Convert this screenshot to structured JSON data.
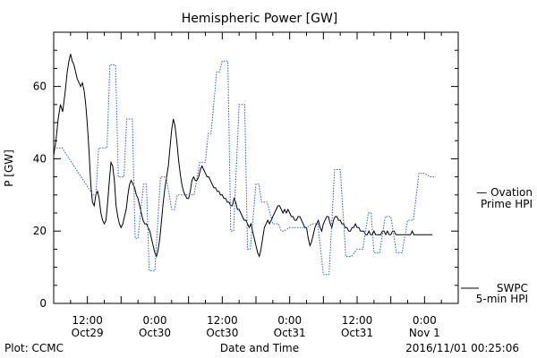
{
  "chart_data": {
    "type": "line",
    "title": "Hemispheric Power [GW]",
    "ylabel": "P [GW]",
    "xlabel": "Date and Time",
    "ylim": [
      0,
      75
    ],
    "xlim": [
      0,
      72
    ],
    "x_unit": "hours from 2016-10-28 06:00",
    "y_ticks": [
      0,
      20,
      40,
      60
    ],
    "x_ticks": [
      {
        "x": 6,
        "time": "12:00",
        "date": "Oct29"
      },
      {
        "x": 18,
        "time": "0:00",
        "date": "Oct30"
      },
      {
        "x": 30,
        "time": "12:00",
        "date": "Oct30"
      },
      {
        "x": 42,
        "time": "0:00",
        "date": "Oct31"
      },
      {
        "x": 54,
        "time": "12:00",
        "date": "Oct31"
      },
      {
        "x": 66,
        "time": "0:00",
        "date": "Nov 1"
      }
    ],
    "grid": false,
    "series": [
      {
        "name": "SWPC 5-min HPI",
        "color": "#000000",
        "style": "solid",
        "x": [
          0,
          0.4,
          0.8,
          1.2,
          1.6,
          2,
          2.4,
          2.7,
          3,
          3.3,
          3.6,
          3.9,
          4.2,
          4.5,
          4.8,
          5.1,
          5.4,
          5.7,
          6,
          6.3,
          6.6,
          6.9,
          7.2,
          7.5,
          7.8,
          8.1,
          8.4,
          8.7,
          9,
          9.3,
          9.6,
          9.9,
          10.2,
          10.5,
          10.8,
          11.1,
          11.4,
          11.7,
          12,
          12.3,
          12.6,
          12.9,
          13.2,
          13.5,
          13.8,
          14.1,
          14.4,
          14.7,
          15,
          15.3,
          15.6,
          15.9,
          16.2,
          16.5,
          16.8,
          17.1,
          17.4,
          17.7,
          18,
          18.3,
          18.6,
          18.9,
          19.2,
          19.5,
          19.8,
          20.1,
          20.4,
          20.7,
          21,
          21.3,
          21.6,
          21.9,
          22.2,
          22.5,
          22.8,
          23.1,
          23.4,
          23.7,
          24,
          24.3,
          24.6,
          24.9,
          25.2,
          25.5,
          25.8,
          26.1,
          26.4,
          26.7,
          27,
          27.3,
          27.6,
          27.9,
          28.2,
          28.5,
          28.8,
          29.1,
          29.4,
          29.7,
          30,
          30.3,
          30.6,
          30.9,
          31.2,
          31.5,
          31.8,
          32.1,
          32.4,
          32.7,
          33,
          33.3,
          33.6,
          33.9,
          34.2,
          34.5,
          34.8,
          35.1,
          35.4,
          35.7,
          36,
          36.3,
          36.6,
          36.9,
          37.2,
          37.5,
          37.8,
          38.1,
          38.4,
          38.7,
          39,
          39.3,
          39.6,
          39.9,
          40.2,
          40.5,
          40.8,
          41.1,
          41.4,
          41.7,
          42,
          42.3,
          42.6,
          42.9,
          43.2,
          43.5,
          43.8,
          44.1,
          44.4,
          44.7,
          45,
          45.3,
          45.6,
          45.9,
          46.2,
          46.5,
          46.8,
          47.1,
          47.4,
          47.7,
          48,
          48.3,
          48.6,
          48.9,
          49.2,
          49.5,
          49.8,
          50.1,
          50.4,
          50.7,
          51,
          51.3,
          51.6,
          51.9,
          52.2,
          52.5,
          52.8,
          53.1,
          53.4,
          53.7,
          54,
          54.3,
          54.6,
          54.9,
          55.2,
          55.5,
          55.8,
          56.1,
          56.4,
          56.7,
          57,
          57.3,
          57.6,
          57.9,
          58.2,
          58.5,
          58.8,
          59.1,
          59.4,
          59.7,
          60,
          60.3,
          60.6,
          60.9,
          61.2,
          61.4,
          61.7,
          62,
          62.3,
          62.6,
          62.9,
          63.2,
          63.5,
          63.8,
          64.1,
          64.4,
          64.7,
          65,
          65.3,
          65.6,
          65.9,
          66.2,
          66.5,
          66.8,
          67.1,
          67.4
        ],
        "y": [
          41,
          45,
          51,
          55,
          53,
          58,
          64,
          67,
          69,
          67,
          66,
          64,
          62,
          61,
          60,
          61,
          59,
          55,
          49,
          42,
          33,
          28,
          27,
          30,
          31,
          29,
          25,
          23,
          22,
          23,
          28,
          34,
          39,
          38,
          34,
          27,
          24,
          22,
          21,
          22,
          24,
          26,
          30,
          33,
          34,
          33,
          32,
          30,
          29,
          27,
          25,
          23,
          22,
          22,
          21,
          20,
          18,
          16,
          14,
          13,
          15,
          18,
          23,
          28,
          32,
          35,
          38,
          43,
          48,
          51,
          49,
          45,
          40,
          36,
          33,
          31,
          30,
          29,
          29,
          31,
          34,
          35,
          34,
          34,
          35,
          37,
          38,
          37,
          36,
          35,
          35,
          34,
          33,
          32,
          32,
          31,
          31,
          30,
          30,
          29,
          29,
          28,
          28,
          27,
          27,
          29,
          28,
          26,
          26,
          25,
          24,
          23,
          23,
          22,
          21,
          22,
          20,
          18,
          16,
          14,
          13,
          15,
          18,
          21,
          22,
          23,
          22,
          23,
          24,
          25,
          26,
          27,
          27,
          26,
          25,
          26,
          25,
          26,
          25,
          24,
          24,
          23,
          23,
          24,
          24,
          23,
          22,
          21,
          21,
          18,
          16,
          17,
          19,
          21,
          22,
          23,
          21,
          20,
          22,
          23,
          24,
          24,
          22,
          21,
          23,
          24,
          24,
          23,
          23,
          22,
          22,
          21,
          21,
          20,
          20,
          21,
          21,
          22,
          21,
          21,
          20,
          20,
          20,
          19,
          19,
          20,
          19,
          19,
          20,
          19,
          19,
          19,
          19,
          20,
          20,
          19,
          20,
          19,
          19,
          20,
          20,
          19,
          19,
          19,
          19,
          19,
          19,
          19,
          19,
          19,
          19,
          20,
          19,
          19,
          19,
          19,
          19,
          19,
          19,
          19,
          19,
          19,
          19,
          19
        ]
      },
      {
        "name": "Ovation Prime HPI",
        "color": "#1f5fbf",
        "style": "dotted",
        "x": [
          0,
          1.5,
          7,
          7.5,
          8,
          9.5,
          10,
          11,
          11.5,
          12.5,
          13,
          14,
          14.5,
          15,
          16,
          16.5,
          17,
          18,
          19,
          20,
          21,
          21.5,
          22,
          23,
          24,
          25,
          26,
          27,
          27.5,
          28,
          29,
          29.5,
          30,
          31,
          31.5,
          32,
          33,
          34,
          34.5,
          35,
          36,
          36.5,
          37,
          38,
          39,
          40,
          40.5,
          41,
          42,
          43,
          44,
          45,
          46,
          47,
          48,
          49,
          50,
          51,
          52,
          53,
          54,
          55,
          56,
          56.5,
          57,
          58,
          59,
          60,
          61,
          62,
          63,
          64,
          65,
          66,
          67,
          68
        ],
        "y": [
          43,
          43,
          30,
          30,
          43,
          43,
          66,
          66,
          35,
          35,
          51,
          51,
          18,
          18,
          33,
          33,
          9,
          9,
          35,
          35,
          26,
          26,
          30,
          30,
          30,
          30,
          39,
          39,
          47,
          47,
          64,
          64,
          67,
          67,
          20,
          20,
          55,
          55,
          15,
          15,
          33,
          33,
          28,
          28,
          22,
          22,
          20,
          20,
          21,
          21,
          21,
          21,
          22,
          22,
          8,
          8,
          37,
          37,
          13,
          13,
          15,
          15,
          25,
          25,
          14,
          14,
          24,
          24,
          14,
          14,
          23,
          23,
          36,
          36,
          35,
          35
        ]
      }
    ],
    "legend": [
      {
        "text": "— Ovation",
        "text2": "Prime HPI",
        "color": "#1f5fbf"
      },
      {
        "text": "SWPC",
        "text2": "5-min HPI",
        "color": "#000000"
      }
    ],
    "footer": {
      "left": "Plot: CCMC",
      "right": "2016/11/01 00:25:06"
    }
  }
}
